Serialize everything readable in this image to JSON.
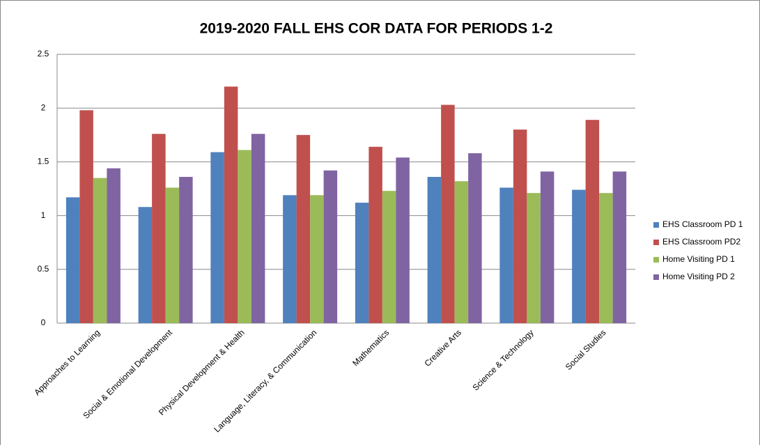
{
  "chart_data": {
    "type": "bar",
    "title": "2019-2020 FALL EHS COR DATA FOR PERIODS 1-2",
    "categories": [
      "Approaches to Learning",
      "Social & Emotional Development",
      "Physical Development & Health",
      "Language, Literacy, & Communication",
      "Mathematics",
      "Creative Arts",
      "Science & Technology",
      "Social Studies"
    ],
    "series": [
      {
        "name": "EHS Classroom PD 1",
        "color": "#4f81bd",
        "values": [
          1.17,
          1.08,
          1.59,
          1.19,
          1.12,
          1.36,
          1.26,
          1.24
        ]
      },
      {
        "name": "EHS Classroom PD2",
        "color": "#c0504d",
        "values": [
          1.98,
          1.76,
          2.2,
          1.75,
          1.64,
          2.03,
          1.8,
          1.89
        ]
      },
      {
        "name": "Home Visiting PD 1",
        "color": "#9bbb59",
        "values": [
          1.35,
          1.26,
          1.61,
          1.19,
          1.23,
          1.32,
          1.21,
          1.21
        ]
      },
      {
        "name": "Home Visiting PD 2",
        "color": "#8064a2",
        "values": [
          1.44,
          1.36,
          1.76,
          1.42,
          1.54,
          1.58,
          1.41,
          1.41
        ]
      }
    ],
    "ylim": [
      0,
      2.5
    ],
    "yticks": [
      0,
      0.5,
      1,
      1.5,
      2,
      2.5
    ],
    "grid": true,
    "legend": "right"
  }
}
